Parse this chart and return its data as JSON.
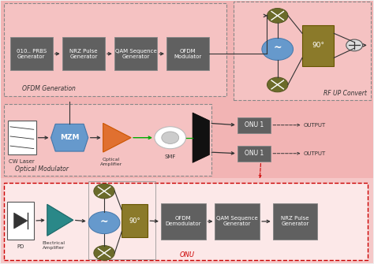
{
  "fig_bg": "#f0f0f0",
  "section1_bg": "#f2b8b8",
  "section2_bg": "#f2b8b8",
  "section3_bg": "#f5c8c8",
  "middle_bg": "#f2b8b8",
  "section1_label": "OFDM Generation",
  "section2_label": "Optical Modulator",
  "section3_label": "ONU",
  "rf_label": "RF UP Convert",
  "blocks_row1": [
    "010.. PRBS\nGenerator",
    "NRZ Pulse\nGenerator",
    "QAM Sequence\nGenerator",
    "OFDM\nModulator"
  ],
  "blocks_onu": [
    "OFDM\nDemodulator",
    "QAM Sequence\nGenerator",
    "NRZ Pulse\nGenerator"
  ],
  "gray_block_fc": "#606060",
  "gray_block_ec": "#888888",
  "mixer_fc": "#6b6b2a",
  "osc_fc": "#6699cc",
  "phase_fc": "#8b7a2a",
  "mzm_fc": "#6699cc",
  "amp_fc": "#e07030",
  "elec_amp_fc": "#2a8888",
  "combiner_fc": "#dddddd",
  "combiner_ec": "#555555"
}
